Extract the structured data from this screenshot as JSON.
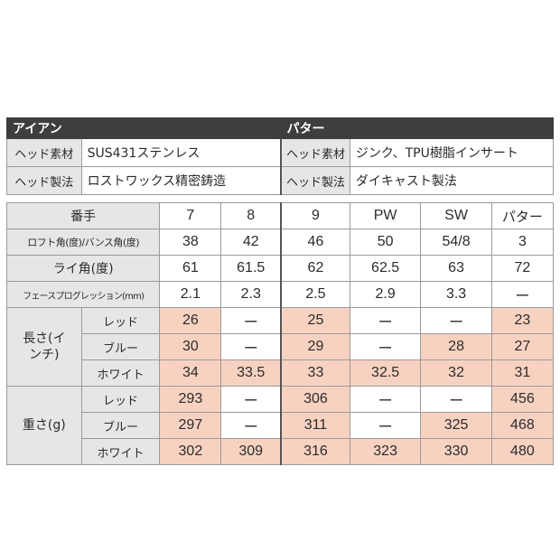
{
  "header": {
    "iron": "アイアン",
    "putter": "パター"
  },
  "iron_spec": {
    "material_label": "ヘッド素材",
    "material": "SUS431ステンレス",
    "method_label": "ヘッド製法",
    "method": "ロストワックス精密鋳造"
  },
  "putter_spec": {
    "material_label": "ヘッド素材",
    "material": "ジンク、TPU樹脂インサート",
    "method_label": "ヘッド製法",
    "method": "ダイキャスト製法"
  },
  "table": {
    "col_label": "番手",
    "columns": [
      "7",
      "8",
      "9",
      "PW",
      "SW",
      "パター"
    ],
    "loft_label": "ロフト角(度)/バンス角(度)",
    "loft": [
      "38",
      "42",
      "46",
      "50",
      "54/8",
      "3"
    ],
    "lie_label": "ライ角(度)",
    "lie": [
      "61",
      "61.5",
      "62",
      "62.5",
      "63",
      "72"
    ],
    "face_label": "フェースプログレッション(mm)",
    "face": [
      "2.1",
      "2.3",
      "2.5",
      "2.9",
      "3.3",
      "ー"
    ],
    "length_label": "長さ(インチ)",
    "weight_label": "重さ(g)",
    "colors": [
      "レッド",
      "ブルー",
      "ホワイト"
    ],
    "length": {
      "red": [
        "26",
        "ー",
        "25",
        "ー",
        "ー",
        "23"
      ],
      "blue": [
        "30",
        "ー",
        "29",
        "ー",
        "28",
        "27"
      ],
      "white": [
        "34",
        "33.5",
        "33",
        "32.5",
        "32",
        "31"
      ]
    },
    "weight": {
      "red": [
        "293",
        "ー",
        "306",
        "ー",
        "ー",
        "456"
      ],
      "blue": [
        "297",
        "ー",
        "311",
        "ー",
        "325",
        "468"
      ],
      "white": [
        "302",
        "309",
        "316",
        "323",
        "330",
        "480"
      ]
    }
  },
  "colors": {
    "header_bg": "#3e3e3e",
    "label_bg": "#e6e6e6",
    "highlight": "#f8d2c1"
  }
}
